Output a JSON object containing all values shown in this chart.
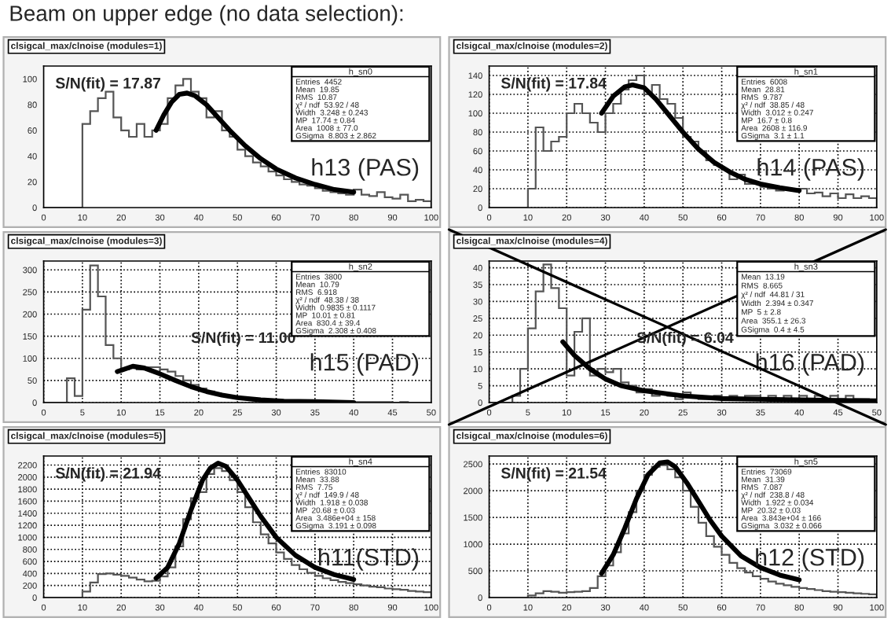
{
  "chart_data": [
    {
      "type": "histogram",
      "title": "Beam on upper edge (no data selection):",
      "subtitle": "clsigcal_max/clnoise (modules=1)",
      "color": "#555555",
      "grid": false,
      "xlim": [
        0,
        100
      ],
      "xticks": [
        0,
        10,
        20,
        30,
        40,
        50,
        60,
        70,
        80,
        90,
        100
      ],
      "ylim": [
        0,
        110
      ],
      "yticks": [
        0,
        20,
        40,
        60,
        80,
        100
      ],
      "bins": [
        0,
        2,
        4,
        6,
        8,
        10,
        12,
        14,
        16,
        18,
        20,
        22,
        24,
        26,
        28,
        30,
        32,
        34,
        36,
        38,
        40,
        42,
        44,
        46,
        48,
        50,
        52,
        54,
        56,
        58,
        60,
        62,
        64,
        66,
        68,
        70,
        72,
        74,
        76,
        78,
        80,
        82,
        84,
        86,
        88,
        90,
        92,
        94,
        96,
        98,
        100
      ],
      "values": [
        0,
        0,
        0,
        0,
        0,
        65,
        75,
        85,
        90,
        70,
        60,
        55,
        65,
        55,
        60,
        65,
        85,
        95,
        100,
        90,
        85,
        70,
        75,
        60,
        55,
        45,
        40,
        35,
        32,
        28,
        25,
        22,
        20,
        18,
        17,
        15,
        13,
        12,
        11,
        10,
        14,
        10,
        9,
        12,
        8,
        7,
        10,
        5,
        6,
        5
      ],
      "series": [
        {
          "type": "line",
          "color": "#000000",
          "x": [
            29,
            31,
            33,
            35,
            37,
            39,
            42,
            45,
            48,
            52,
            56,
            60,
            65,
            70,
            75,
            80
          ],
          "values": [
            60,
            72,
            82,
            88,
            89,
            87,
            80,
            70,
            60,
            48,
            38,
            30,
            23,
            18,
            14,
            12
          ]
        }
      ],
      "annotations": [
        "h13 (PAS)",
        "S/N(fit) = 17.87",
        "h_sn0",
        "Entries  4452",
        "Mean  19.85",
        "RMS  10.87",
        "χ² / ndf  53.92 / 48",
        "Width  3.248 ± 0.243",
        "MP  17.74 ± 0.84",
        "Area  1008 ± 77.0",
        "GSigma  8.803 ± 2.862"
      ]
    },
    {
      "type": "histogram",
      "subtitle": "clsigcal_max/clnoise (modules=2)",
      "color": "#555555",
      "grid": true,
      "xlim": [
        0,
        100
      ],
      "xticks": [
        0,
        10,
        20,
        30,
        40,
        50,
        60,
        70,
        80,
        90,
        100
      ],
      "ylim": [
        0,
        150
      ],
      "yticks": [
        0,
        20,
        40,
        60,
        80,
        100,
        120,
        140
      ],
      "bins": [
        0,
        2,
        4,
        6,
        8,
        10,
        12,
        14,
        16,
        18,
        20,
        22,
        24,
        26,
        28,
        30,
        32,
        34,
        36,
        38,
        40,
        42,
        44,
        46,
        48,
        50,
        52,
        54,
        56,
        58,
        60,
        62,
        64,
        66,
        68,
        70,
        72,
        74,
        76,
        78,
        80,
        82,
        84,
        86,
        88,
        90,
        92,
        94,
        96,
        98,
        100
      ],
      "values": [
        0,
        0,
        0,
        0,
        0,
        20,
        85,
        60,
        70,
        75,
        100,
        110,
        100,
        90,
        80,
        100,
        110,
        125,
        135,
        140,
        120,
        130,
        115,
        110,
        95,
        75,
        70,
        60,
        50,
        45,
        40,
        30,
        35,
        25,
        25,
        22,
        20,
        18,
        20,
        18,
        20,
        15,
        16,
        12,
        15,
        10,
        14,
        10,
        12,
        10
      ],
      "series": [
        {
          "type": "line",
          "color": "#000000",
          "x": [
            29,
            32,
            35,
            37,
            40,
            43,
            46,
            50,
            54,
            58,
            62,
            66,
            70,
            75,
            80
          ],
          "values": [
            100,
            118,
            128,
            130,
            127,
            115,
            100,
            80,
            62,
            48,
            38,
            30,
            25,
            21,
            18
          ]
        }
      ],
      "annotations": [
        "h14 (PAS)",
        "S/N(fit) = 17.84",
        "h_sn1",
        "Entries  6008",
        "Mean  28.81",
        "RMS  9.787",
        "χ² / ndf  38.85 / 48",
        "Width  3.012 ± 0.247",
        "MP  16.7 ± 0.8",
        "Area  2608 ± 116.9",
        "GSigma  3.1 ± 1.1"
      ]
    },
    {
      "type": "histogram",
      "subtitle": "clsigcal_max/clnoise (modules=3)",
      "color": "#555555",
      "grid": true,
      "xlim": [
        0,
        50
      ],
      "xticks": [
        0,
        5,
        10,
        15,
        20,
        25,
        30,
        35,
        40,
        45,
        50
      ],
      "ylim": [
        0,
        320
      ],
      "yticks": [
        0,
        50,
        100,
        150,
        200,
        250,
        300
      ],
      "bins": [
        0,
        1,
        2,
        3,
        4,
        5,
        6,
        7,
        8,
        9,
        10,
        11,
        12,
        13,
        14,
        15,
        16,
        17,
        18,
        19,
        20,
        21,
        22,
        23,
        24,
        25,
        26,
        27,
        28,
        29,
        30,
        31,
        32,
        33,
        34,
        35,
        36,
        37,
        38,
        39,
        40,
        41,
        42,
        43,
        44,
        45,
        46,
        47,
        48,
        49,
        50
      ],
      "values": [
        0,
        0,
        0,
        55,
        15,
        210,
        310,
        240,
        130,
        100,
        75,
        80,
        75,
        80,
        80,
        75,
        70,
        60,
        50,
        40,
        32,
        25,
        20,
        15,
        12,
        10,
        8,
        6,
        5,
        5,
        4,
        3,
        3,
        3,
        2,
        2,
        2,
        2,
        1,
        1,
        1,
        1,
        1,
        1,
        1,
        0,
        1,
        0,
        0,
        0
      ],
      "series": [
        {
          "type": "line",
          "color": "#000000",
          "x": [
            9.5,
            11.5,
            13,
            15,
            17,
            19,
            21,
            23,
            25,
            28,
            31,
            35,
            40
          ],
          "values": [
            70,
            82,
            78,
            65,
            50,
            36,
            25,
            17,
            11,
            6,
            3,
            2,
            0
          ]
        }
      ],
      "annotations": [
        "h15 (PAD)",
        "S/N(fit) = 11.00",
        "h_sn2",
        "Entries  3800",
        "Mean  10.79",
        "RMS  6.918",
        "χ² / ndf  48.38 / 38",
        "Width  0.9835 ± 0.1117",
        "MP  10.01 ± 0.81",
        "Area  830.4 ± 39.4",
        "GSigma  2.308 ± 0.408"
      ]
    },
    {
      "type": "histogram",
      "subtitle": "clsigcal_max/clnoise (modules=4)",
      "color": "#555555",
      "grid": true,
      "xlim": [
        0,
        50
      ],
      "xticks": [
        0,
        5,
        10,
        15,
        20,
        25,
        30,
        35,
        40,
        45,
        50
      ],
      "ylim": [
        0,
        42
      ],
      "yticks": [
        0,
        5,
        10,
        15,
        20,
        25,
        30,
        35,
        40
      ],
      "bins": [
        0,
        1,
        2,
        3,
        4,
        5,
        6,
        7,
        8,
        9,
        10,
        11,
        12,
        13,
        14,
        15,
        16,
        17,
        18,
        19,
        20,
        21,
        22,
        23,
        24,
        25,
        26,
        27,
        28,
        29,
        30,
        31,
        32,
        33,
        34,
        35,
        36,
        37,
        38,
        39,
        40,
        41,
        42,
        43,
        44,
        45,
        46,
        47,
        48,
        49,
        50
      ],
      "values": [
        0,
        0,
        0,
        2,
        10,
        22,
        33,
        41,
        34,
        28,
        8,
        21,
        25,
        8,
        10,
        9,
        10,
        6,
        5,
        3,
        4,
        2,
        3,
        2,
        1,
        3,
        2,
        1,
        1,
        2,
        1,
        2,
        1,
        2,
        2,
        1,
        2,
        1,
        2,
        1,
        2,
        1,
        2,
        0,
        2,
        1,
        2,
        1,
        1,
        0
      ],
      "series": [
        {
          "type": "line",
          "color": "#000000",
          "x": [
            9.5,
            11,
            13,
            15,
            17,
            20,
            25,
            30,
            35,
            40,
            45,
            50
          ],
          "values": [
            18,
            14,
            10,
            7,
            5,
            3.5,
            2,
            1.2,
            1,
            0.8,
            0.6,
            0.5
          ]
        }
      ],
      "annotations": [
        "h16 (PAD)",
        "S/N(fit) = 6.04",
        "h_sn3",
        "Mean  13.19",
        "RMS  8.665",
        "χ² / ndf  44.81 / 31",
        "Width  2.394 ± 0.347",
        "MP  5 ± 2.8",
        "Area  355.1 ± 26.3",
        "GSigma  0.4 ± 4.5"
      ]
    },
    {
      "type": "histogram",
      "subtitle": "clsigcal_max/clnoise (modules=5)",
      "color": "#555555",
      "grid": true,
      "xlim": [
        0,
        100
      ],
      "xticks": [
        0,
        10,
        20,
        30,
        40,
        50,
        60,
        70,
        80,
        90,
        100
      ],
      "ylim": [
        0,
        2350
      ],
      "yticks": [
        0,
        200,
        400,
        600,
        800,
        1000,
        1200,
        1400,
        1600,
        1800,
        2000,
        2200
      ],
      "bins": [
        0,
        2,
        4,
        6,
        8,
        10,
        12,
        14,
        16,
        18,
        20,
        22,
        24,
        26,
        28,
        30,
        32,
        34,
        36,
        38,
        40,
        42,
        44,
        46,
        48,
        50,
        52,
        54,
        56,
        58,
        60,
        62,
        64,
        66,
        68,
        70,
        72,
        74,
        76,
        78,
        80,
        82,
        84,
        86,
        88,
        90,
        92,
        94,
        96,
        98,
        100
      ],
      "values": [
        0,
        0,
        0,
        0,
        0,
        100,
        250,
        390,
        400,
        380,
        360,
        330,
        300,
        270,
        280,
        350,
        500,
        850,
        1300,
        1650,
        1750,
        2050,
        2150,
        2100,
        1950,
        1750,
        1500,
        1250,
        1050,
        900,
        750,
        640,
        540,
        470,
        410,
        360,
        320,
        290,
        260,
        240,
        220,
        200,
        180,
        170,
        150,
        140,
        130,
        110,
        100,
        90
      ],
      "series": [
        {
          "type": "line",
          "color": "#000000",
          "x": [
            29,
            32,
            35,
            38,
            41,
            43,
            45,
            47,
            50,
            53,
            56,
            60,
            65,
            70,
            75,
            80
          ],
          "values": [
            320,
            500,
            900,
            1450,
            1950,
            2150,
            2230,
            2180,
            1950,
            1650,
            1350,
            1000,
            700,
            500,
            380,
            300
          ]
        }
      ],
      "annotations": [
        "h11(STD)",
        "S/N(fit) = 21.94",
        "h_sn4",
        "Entries  83010",
        "Mean  33.88",
        "RMS  7.75",
        "χ² / ndf  149.9 / 48",
        "Width  1.918 ± 0.038",
        "MP  20.68 ± 0.03",
        "Area  3.486e+04 ± 158",
        "GSigma  3.191 ± 0.098"
      ]
    },
    {
      "type": "histogram",
      "subtitle": "clsigcal_max/clnoise (modules=6)",
      "color": "#555555",
      "grid": true,
      "xlim": [
        0,
        100
      ],
      "xticks": [
        0,
        10,
        20,
        30,
        40,
        50,
        60,
        70,
        80,
        90,
        100
      ],
      "ylim": [
        0,
        2650
      ],
      "yticks": [
        0,
        500,
        1000,
        1500,
        2000,
        2500
      ],
      "bins": [
        0,
        2,
        4,
        6,
        8,
        10,
        12,
        14,
        16,
        18,
        20,
        22,
        24,
        26,
        28,
        30,
        32,
        34,
        36,
        38,
        40,
        42,
        44,
        46,
        48,
        50,
        52,
        54,
        56,
        58,
        60,
        62,
        64,
        66,
        68,
        70,
        72,
        74,
        76,
        78,
        80,
        82,
        84,
        86,
        88,
        90,
        92,
        94,
        96,
        98,
        100
      ],
      "values": [
        0,
        0,
        0,
        0,
        0,
        40,
        80,
        120,
        110,
        90,
        100,
        110,
        120,
        180,
        400,
        600,
        850,
        1200,
        1600,
        2000,
        2300,
        2450,
        2480,
        2400,
        2250,
        2000,
        1700,
        1400,
        1150,
        950,
        800,
        650,
        550,
        470,
        400,
        350,
        300,
        260,
        230,
        200,
        180,
        160,
        140,
        120,
        110,
        100,
        90,
        80,
        70,
        60
      ],
      "series": [
        {
          "type": "line",
          "color": "#000000",
          "x": [
            29,
            32,
            35,
            38,
            41,
            44,
            46,
            48,
            51,
            54,
            57,
            60,
            65,
            70,
            75,
            80
          ],
          "values": [
            450,
            800,
            1300,
            1850,
            2300,
            2520,
            2540,
            2450,
            2150,
            1800,
            1450,
            1150,
            780,
            560,
            420,
            330
          ]
        }
      ],
      "annotations": [
        "h12 (STD)",
        "S/N(fit) = 21.54",
        "h_sn5",
        "Entries  73069",
        "Mean  31.39",
        "RMS  7.087",
        "χ² / ndf  238.8 / 48",
        "Width  1.922 ± 0.034",
        "MP  20.32 ± 0.03",
        "Area  3.843e+04 ± 166",
        "GSigma  3.032 ± 0.066"
      ]
    }
  ]
}
